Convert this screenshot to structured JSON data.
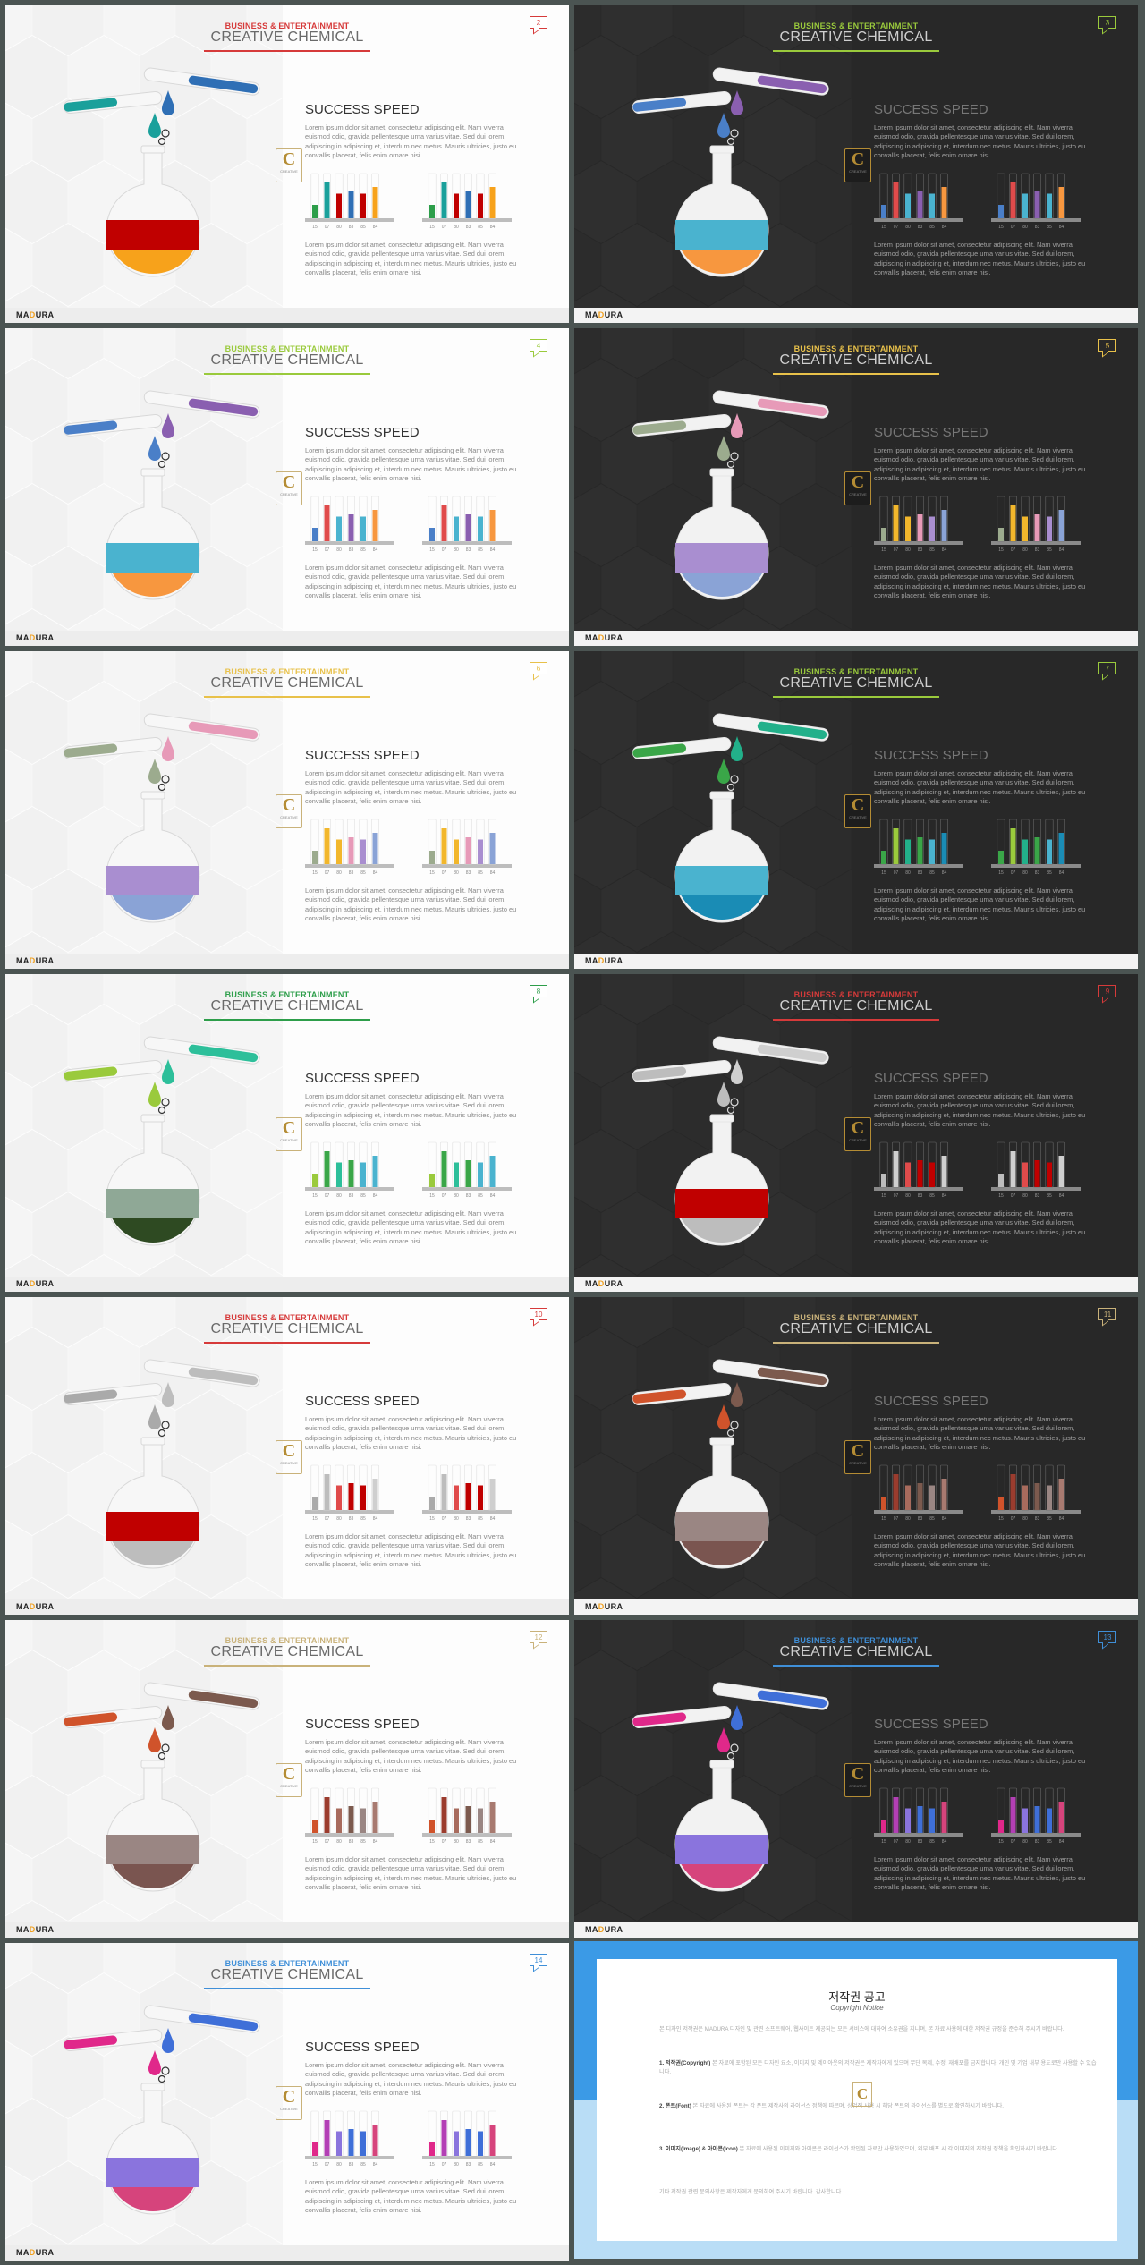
{
  "common": {
    "subtitle": "BUSINESS & ENTERTAINMENT",
    "title": "CREATIVE CHEMICAL",
    "section_title": "SUCCESS SPEED",
    "body_text_1": "Lorem ipsum dolor sit amet, consectetur adipiscing elit. Nam viverra euismod odio, gravida pellentesque urna varius vitae. Sed dui lorem, adipiscing in adipiscing et, interdum nec metus. Mauris ultricies, justo eu convallis placerat, felis enim ornare nisi.",
    "body_text_2": "Lorem ipsum dolor sit amet, consectetur adipiscing elit. Nam viverra euismod odio, gravida pellentesque urna varius vitae. Sed dui lorem, adipiscing in adipiscing et, interdum nec metus. Mauris ultricies, justo eu convallis placerat, felis enim ornare nisi.",
    "badge_letter": "C",
    "badge_text": "CREATIVE",
    "logo_pre": "MA",
    "logo_accent": "D",
    "logo_post": "URA"
  },
  "chart_data": [
    {
      "type": "bar",
      "categories": [
        "15",
        "07",
        "80",
        "83",
        "85",
        "84"
      ],
      "values": [
        30,
        80,
        55,
        60,
        55,
        70
      ]
    },
    {
      "type": "bar",
      "categories": [
        "15",
        "07",
        "80",
        "83",
        "85",
        "84"
      ],
      "values": [
        30,
        80,
        55,
        60,
        55,
        70
      ]
    }
  ],
  "slides": [
    {
      "page": "2",
      "theme": "light",
      "c1": "#1aa09b",
      "c2": "#2f6fb5",
      "liq1": "#c00000",
      "liq2": "#f7a21b",
      "sub": "#d63a3a",
      "bars": [
        "#2d9e4a",
        "#1aa09b",
        "#c00000",
        "#2f6fb5",
        "#c00000",
        "#f7a21b"
      ]
    },
    {
      "page": "3",
      "theme": "dark",
      "c1": "#4a7fc8",
      "c2": "#8a5fb0",
      "liq1": "#4ab3cf",
      "liq2": "#f7973f",
      "sub": "#9aca3c",
      "bars": [
        "#4a7fc8",
        "#e04b4b",
        "#4ab3cf",
        "#8a5fb0",
        "#4ab3cf",
        "#f7973f"
      ]
    },
    {
      "page": "4",
      "theme": "light",
      "c1": "#4a7fc8",
      "c2": "#8a5fb0",
      "liq1": "#4ab3cf",
      "liq2": "#f7973f",
      "sub": "#9aca3c",
      "bars": [
        "#4a7fc8",
        "#e04b4b",
        "#4ab3cf",
        "#8a5fb0",
        "#4ab3cf",
        "#f7973f"
      ]
    },
    {
      "page": "5",
      "theme": "dark",
      "c1": "#9cab8e",
      "c2": "#e79ab8",
      "liq1": "#a98ed0",
      "liq2": "#8aa3d6",
      "sub": "#e8c14a",
      "bars": [
        "#9cab8e",
        "#f2b72c",
        "#f2b72c",
        "#e79ab8",
        "#a98ed0",
        "#8aa3d6"
      ]
    },
    {
      "page": "6",
      "theme": "light",
      "c1": "#9cab8e",
      "c2": "#e79ab8",
      "liq1": "#a98ed0",
      "liq2": "#8aa3d6",
      "sub": "#e8c14a",
      "bars": [
        "#9cab8e",
        "#f2b72c",
        "#f2b72c",
        "#e79ab8",
        "#a98ed0",
        "#8aa3d6"
      ]
    },
    {
      "page": "7",
      "theme": "dark",
      "c1": "#3aa648",
      "c2": "#22b08a",
      "liq1": "#4ab3cf",
      "liq2": "#1a8cb5",
      "sub": "#9aca3c",
      "bars": [
        "#3aa648",
        "#9aca3c",
        "#22b08a",
        "#3aa648",
        "#4ab3cf",
        "#1a8cb5"
      ]
    },
    {
      "page": "8",
      "theme": "light",
      "c1": "#9aca3c",
      "c2": "#2dbf9a",
      "liq1": "#8fa896",
      "liq2": "#2e4a22",
      "sub": "#2d9e4a",
      "bars": [
        "#9aca3c",
        "#3aa648",
        "#2dbf9a",
        "#3aa648",
        "#4ab3cf",
        "#4ab3cf"
      ]
    },
    {
      "page": "9",
      "theme": "dark",
      "c1": "#bdbdbd",
      "c2": "#cfcfcf",
      "liq1": "#c00000",
      "liq2": "#bdbdbd",
      "sub": "#d63a3a",
      "bars": [
        "#bdbdbd",
        "#cfcfcf",
        "#e04b4b",
        "#c00000",
        "#c00000",
        "#cfcfcf"
      ]
    },
    {
      "page": "10",
      "theme": "light",
      "c1": "#aaaaaa",
      "c2": "#bdbdbd",
      "liq1": "#c00000",
      "liq2": "#bdbdbd",
      "sub": "#d63a3a",
      "bars": [
        "#aaaaaa",
        "#bdbdbd",
        "#e04b4b",
        "#c00000",
        "#c00000",
        "#cfcfcf"
      ]
    },
    {
      "page": "11",
      "theme": "dark",
      "c1": "#d0532b",
      "c2": "#7c5a4e",
      "liq1": "#9a8683",
      "liq2": "#7a5550",
      "sub": "#c9b27a",
      "bars": [
        "#d0532b",
        "#9b3c2e",
        "#a86b5d",
        "#7c5a4e",
        "#9a8683",
        "#a87a70"
      ]
    },
    {
      "page": "12",
      "theme": "light",
      "c1": "#d0532b",
      "c2": "#7c5a4e",
      "liq1": "#9a8683",
      "liq2": "#7a5550",
      "sub": "#c9b27a",
      "bars": [
        "#d0532b",
        "#9b3c2e",
        "#a86b5d",
        "#7c5a4e",
        "#9a8683",
        "#a87a70"
      ]
    },
    {
      "page": "13",
      "theme": "dark",
      "c1": "#e0288a",
      "c2": "#3f6fd8",
      "liq1": "#8a74dd",
      "liq2": "#d6447c",
      "sub": "#3f8fd8",
      "bars": [
        "#e0288a",
        "#b33fb5",
        "#8a74dd",
        "#3f6fd8",
        "#3f6fd8",
        "#d6447c"
      ]
    },
    {
      "page": "14",
      "theme": "light",
      "c1": "#e0288a",
      "c2": "#3f6fd8",
      "liq1": "#8a74dd",
      "liq2": "#d6447c",
      "sub": "#3f8fd8",
      "bars": [
        "#e0288a",
        "#b33fb5",
        "#8a74dd",
        "#3f6fd8",
        "#3f6fd8",
        "#d6447c"
      ]
    }
  ],
  "copyright": {
    "title": "저작권 공고",
    "subtitle": "Copyright Notice",
    "intro": "본 디자인 저작권은 MADURA 디자인 및 관련 소프트웨어, 웹사이트 제공되는 모든 서비스에 대하여 소유권을 지니며, 본 자료 사용에 대한 저작권 규정을 준수해 주시기 바랍니다.",
    "s1_title": "1. 저작권(Copyright)",
    "s1_text": "본 자료에 포함된 모든 디자인 요소, 이미지 및 레이아웃의 저작권은 제작자에게 있으며 무단 복제, 수정, 재배포를 금지합니다. 개인 및 기업 내부 용도로만 사용할 수 있습니다.",
    "s2_title": "2. 폰트(Font)",
    "s2_text": "본 자료에 사용된 폰트는 각 폰트 제작사의 라이선스 정책에 따르며, 상업적 사용 시 해당 폰트의 라이선스를 별도로 확인하시기 바랍니다.",
    "s3_title": "3. 이미지(Image) & 아이콘(Icon)",
    "s3_text": "본 자료에 사용된 이미지와 아이콘은 라이선스가 확인된 자료만 사용하였으며, 외부 배포 시 각 이미지의 저작권 정책을 확인하시기 바랍니다.",
    "outro": "기타 저작권 관련 문의사항은 제작자에게 문의하여 주시기 바랍니다. 감사합니다."
  }
}
